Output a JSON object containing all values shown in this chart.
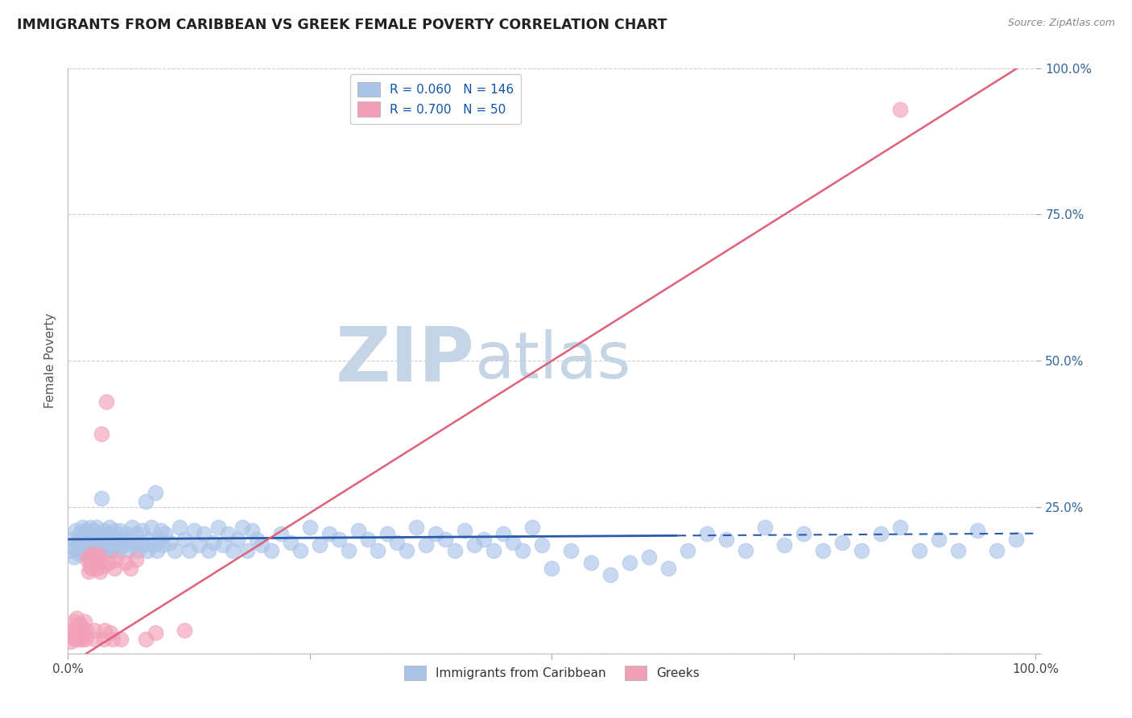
{
  "title": "IMMIGRANTS FROM CARIBBEAN VS GREEK FEMALE POVERTY CORRELATION CHART",
  "source": "Source: ZipAtlas.com",
  "ylabel": "Female Poverty",
  "xlim": [
    0,
    1
  ],
  "ylim": [
    0,
    1
  ],
  "yticks": [
    0,
    0.25,
    0.5,
    0.75,
    1.0
  ],
  "ytick_labels": [
    "",
    "25.0%",
    "50.0%",
    "75.0%",
    "100.0%"
  ],
  "xtick_labels": [
    "0.0%",
    "100.0%"
  ],
  "blue_color": "#aac4e8",
  "pink_color": "#f2a0b8",
  "blue_line_color": "#2a5aaa",
  "pink_line_color": "#e0607a",
  "R_blue": 0.06,
  "N_blue": 146,
  "R_pink": 0.7,
  "N_pink": 50,
  "watermark1": "ZIP",
  "watermark2": "atlas",
  "watermark_color1": "#c5d5e5",
  "watermark_color2": "#c5d5e5",
  "blue_line_solid_end": 0.63,
  "blue_scatter": [
    [
      0.003,
      0.175
    ],
    [
      0.005,
      0.195
    ],
    [
      0.006,
      0.165
    ],
    [
      0.007,
      0.18
    ],
    [
      0.008,
      0.21
    ],
    [
      0.009,
      0.19
    ],
    [
      0.01,
      0.185
    ],
    [
      0.011,
      0.17
    ],
    [
      0.012,
      0.205
    ],
    [
      0.013,
      0.175
    ],
    [
      0.014,
      0.195
    ],
    [
      0.015,
      0.215
    ],
    [
      0.016,
      0.19
    ],
    [
      0.017,
      0.175
    ],
    [
      0.018,
      0.21
    ],
    [
      0.019,
      0.195
    ],
    [
      0.02,
      0.185
    ],
    [
      0.021,
      0.165
    ],
    [
      0.022,
      0.2
    ],
    [
      0.023,
      0.215
    ],
    [
      0.024,
      0.175
    ],
    [
      0.025,
      0.195
    ],
    [
      0.026,
      0.21
    ],
    [
      0.027,
      0.185
    ],
    [
      0.028,
      0.175
    ],
    [
      0.029,
      0.2
    ],
    [
      0.03,
      0.215
    ],
    [
      0.031,
      0.19
    ],
    [
      0.032,
      0.205
    ],
    [
      0.033,
      0.18
    ],
    [
      0.034,
      0.195
    ],
    [
      0.035,
      0.265
    ],
    [
      0.036,
      0.175
    ],
    [
      0.037,
      0.21
    ],
    [
      0.038,
      0.195
    ],
    [
      0.039,
      0.185
    ],
    [
      0.04,
      0.205
    ],
    [
      0.041,
      0.175
    ],
    [
      0.042,
      0.19
    ],
    [
      0.043,
      0.215
    ],
    [
      0.044,
      0.18
    ],
    [
      0.045,
      0.205
    ],
    [
      0.046,
      0.195
    ],
    [
      0.047,
      0.175
    ],
    [
      0.048,
      0.21
    ],
    [
      0.049,
      0.185
    ],
    [
      0.05,
      0.195
    ],
    [
      0.052,
      0.175
    ],
    [
      0.054,
      0.21
    ],
    [
      0.056,
      0.195
    ],
    [
      0.058,
      0.185
    ],
    [
      0.06,
      0.205
    ],
    [
      0.062,
      0.175
    ],
    [
      0.064,
      0.195
    ],
    [
      0.066,
      0.215
    ],
    [
      0.068,
      0.185
    ],
    [
      0.07,
      0.205
    ],
    [
      0.072,
      0.175
    ],
    [
      0.074,
      0.19
    ],
    [
      0.076,
      0.21
    ],
    [
      0.078,
      0.185
    ],
    [
      0.08,
      0.26
    ],
    [
      0.082,
      0.175
    ],
    [
      0.084,
      0.195
    ],
    [
      0.086,
      0.215
    ],
    [
      0.088,
      0.185
    ],
    [
      0.09,
      0.275
    ],
    [
      0.092,
      0.175
    ],
    [
      0.094,
      0.195
    ],
    [
      0.096,
      0.21
    ],
    [
      0.098,
      0.185
    ],
    [
      0.1,
      0.205
    ],
    [
      0.105,
      0.19
    ],
    [
      0.11,
      0.175
    ],
    [
      0.115,
      0.215
    ],
    [
      0.12,
      0.195
    ],
    [
      0.125,
      0.175
    ],
    [
      0.13,
      0.21
    ],
    [
      0.135,
      0.185
    ],
    [
      0.14,
      0.205
    ],
    [
      0.145,
      0.175
    ],
    [
      0.15,
      0.19
    ],
    [
      0.155,
      0.215
    ],
    [
      0.16,
      0.185
    ],
    [
      0.165,
      0.205
    ],
    [
      0.17,
      0.175
    ],
    [
      0.175,
      0.195
    ],
    [
      0.18,
      0.215
    ],
    [
      0.185,
      0.175
    ],
    [
      0.19,
      0.21
    ],
    [
      0.195,
      0.195
    ],
    [
      0.2,
      0.185
    ],
    [
      0.21,
      0.175
    ],
    [
      0.22,
      0.205
    ],
    [
      0.23,
      0.19
    ],
    [
      0.24,
      0.175
    ],
    [
      0.25,
      0.215
    ],
    [
      0.26,
      0.185
    ],
    [
      0.27,
      0.205
    ],
    [
      0.28,
      0.195
    ],
    [
      0.29,
      0.175
    ],
    [
      0.3,
      0.21
    ],
    [
      0.31,
      0.195
    ],
    [
      0.32,
      0.175
    ],
    [
      0.33,
      0.205
    ],
    [
      0.34,
      0.19
    ],
    [
      0.35,
      0.175
    ],
    [
      0.36,
      0.215
    ],
    [
      0.37,
      0.185
    ],
    [
      0.38,
      0.205
    ],
    [
      0.39,
      0.195
    ],
    [
      0.4,
      0.175
    ],
    [
      0.41,
      0.21
    ],
    [
      0.42,
      0.185
    ],
    [
      0.43,
      0.195
    ],
    [
      0.44,
      0.175
    ],
    [
      0.45,
      0.205
    ],
    [
      0.46,
      0.19
    ],
    [
      0.47,
      0.175
    ],
    [
      0.48,
      0.215
    ],
    [
      0.49,
      0.185
    ],
    [
      0.5,
      0.145
    ],
    [
      0.52,
      0.175
    ],
    [
      0.54,
      0.155
    ],
    [
      0.56,
      0.135
    ],
    [
      0.58,
      0.155
    ],
    [
      0.6,
      0.165
    ],
    [
      0.62,
      0.145
    ],
    [
      0.64,
      0.175
    ],
    [
      0.66,
      0.205
    ],
    [
      0.68,
      0.195
    ],
    [
      0.7,
      0.175
    ],
    [
      0.72,
      0.215
    ],
    [
      0.74,
      0.185
    ],
    [
      0.76,
      0.205
    ],
    [
      0.78,
      0.175
    ],
    [
      0.8,
      0.19
    ],
    [
      0.82,
      0.175
    ],
    [
      0.84,
      0.205
    ],
    [
      0.86,
      0.215
    ],
    [
      0.88,
      0.175
    ],
    [
      0.9,
      0.195
    ],
    [
      0.92,
      0.175
    ],
    [
      0.94,
      0.21
    ],
    [
      0.96,
      0.175
    ],
    [
      0.98,
      0.195
    ]
  ],
  "pink_scatter": [
    [
      0.003,
      0.02
    ],
    [
      0.004,
      0.04
    ],
    [
      0.005,
      0.03
    ],
    [
      0.006,
      0.055
    ],
    [
      0.007,
      0.025
    ],
    [
      0.008,
      0.04
    ],
    [
      0.009,
      0.06
    ],
    [
      0.01,
      0.035
    ],
    [
      0.011,
      0.025
    ],
    [
      0.012,
      0.05
    ],
    [
      0.013,
      0.03
    ],
    [
      0.014,
      0.045
    ],
    [
      0.015,
      0.025
    ],
    [
      0.016,
      0.035
    ],
    [
      0.017,
      0.055
    ],
    [
      0.018,
      0.025
    ],
    [
      0.019,
      0.04
    ],
    [
      0.02,
      0.16
    ],
    [
      0.021,
      0.14
    ],
    [
      0.022,
      0.165
    ],
    [
      0.023,
      0.15
    ],
    [
      0.024,
      0.145
    ],
    [
      0.025,
      0.17
    ],
    [
      0.026,
      0.155
    ],
    [
      0.027,
      0.04
    ],
    [
      0.028,
      0.025
    ],
    [
      0.029,
      0.16
    ],
    [
      0.03,
      0.145
    ],
    [
      0.031,
      0.17
    ],
    [
      0.032,
      0.155
    ],
    [
      0.033,
      0.14
    ],
    [
      0.034,
      0.16
    ],
    [
      0.035,
      0.375
    ],
    [
      0.036,
      0.15
    ],
    [
      0.037,
      0.025
    ],
    [
      0.038,
      0.04
    ],
    [
      0.04,
      0.43
    ],
    [
      0.042,
      0.155
    ],
    [
      0.044,
      0.035
    ],
    [
      0.046,
      0.025
    ],
    [
      0.048,
      0.145
    ],
    [
      0.05,
      0.16
    ],
    [
      0.055,
      0.025
    ],
    [
      0.06,
      0.155
    ],
    [
      0.065,
      0.145
    ],
    [
      0.07,
      0.16
    ],
    [
      0.08,
      0.025
    ],
    [
      0.09,
      0.035
    ],
    [
      0.12,
      0.04
    ],
    [
      0.86,
      0.93
    ]
  ],
  "pink_line": [
    [
      0,
      -0.02
    ],
    [
      1,
      1.02
    ]
  ],
  "blue_line_y_start": 0.195,
  "blue_line_y_end": 0.205
}
